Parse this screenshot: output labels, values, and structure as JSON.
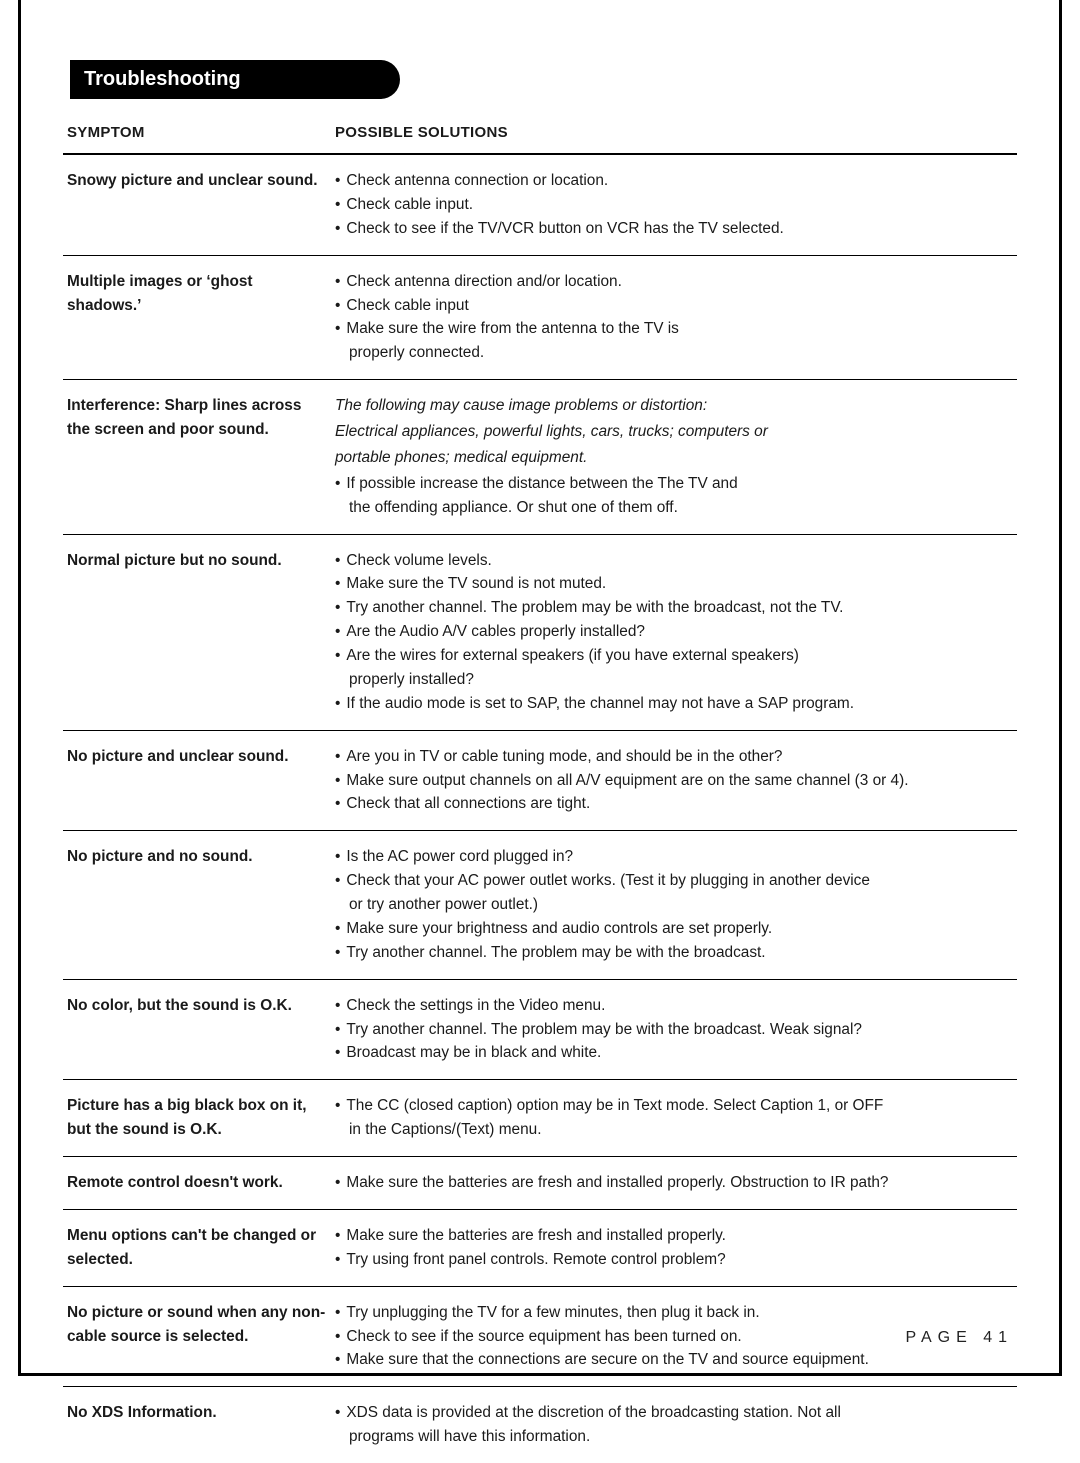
{
  "section_title": "Troubleshooting",
  "headers": {
    "symptom": "SYMPTOM",
    "solutions": "POSSIBLE SOLUTIONS"
  },
  "page_label": "PAGE 41",
  "colors": {
    "text": "#1a1a1a",
    "border": "#000000",
    "bg": "#ffffff",
    "tab_bg": "#000000",
    "tab_fg": "#ffffff"
  },
  "fontsizes": {
    "tab": 20,
    "header": 15,
    "body": 15.4,
    "page_num": 16
  },
  "rows": [
    {
      "symptom": "Snowy picture and unclear sound.",
      "lines": [
        {
          "t": "bullet",
          "text": "Check antenna connection or location."
        },
        {
          "t": "bullet",
          "text": "Check cable input."
        },
        {
          "t": "bullet",
          "text": "Check to see if the TV/VCR button on VCR has the TV selected."
        }
      ]
    },
    {
      "symptom": "Multiple images or ‘ghost shadows.’",
      "lines": [
        {
          "t": "bullet",
          "text": "Check antenna direction and/or location."
        },
        {
          "t": "bullet",
          "text": "Check cable input"
        },
        {
          "t": "bullet",
          "text": "Make sure the wire from the antenna to the TV is"
        },
        {
          "t": "cont",
          "text": "properly connected."
        }
      ]
    },
    {
      "symptom": "Interference: Sharp lines across the screen and poor sound.",
      "lines": [
        {
          "t": "italic",
          "text": "The following may cause image problems or distortion:"
        },
        {
          "t": "italic",
          "text": "Electrical appliances, powerful lights, cars, trucks; computers or"
        },
        {
          "t": "italic",
          "text": "portable phones; medical equipment."
        },
        {
          "t": "bullet",
          "text": "If possible increase the distance between the The TV and"
        },
        {
          "t": "cont",
          "text": "the offending appliance. Or shut one of them off."
        }
      ]
    },
    {
      "symptom": "Normal picture but no sound.",
      "lines": [
        {
          "t": "bullet",
          "text": "Check volume levels."
        },
        {
          "t": "bullet",
          "text": "Make sure the TV sound is not muted."
        },
        {
          "t": "bullet",
          "text": "Try another channel. The problem may be with the broadcast, not the TV."
        },
        {
          "t": "bullet",
          "text": "Are the Audio A/V cables properly installed?"
        },
        {
          "t": "bullet",
          "text": "Are the wires for external speakers (if you have external speakers)"
        },
        {
          "t": "cont",
          "text": "properly installed?"
        },
        {
          "t": "bullet",
          "text": "If the audio mode is set to SAP, the channel may not have a SAP program."
        }
      ]
    },
    {
      "symptom": "No picture and unclear sound.",
      "lines": [
        {
          "t": "bullet",
          "text": "Are you in TV or cable tuning mode, and should be in the other?"
        },
        {
          "t": "bullet",
          "text": "Make sure output channels on all A/V equipment are on the same channel (3 or 4)."
        },
        {
          "t": "bullet",
          "text": "Check that all connections are tight."
        }
      ]
    },
    {
      "symptom": "No picture and no sound.",
      "lines": [
        {
          "t": "bullet",
          "text": "Is the AC power cord plugged in?"
        },
        {
          "t": "bullet",
          "text": "Check that your AC power outlet works. (Test it by plugging in another device"
        },
        {
          "t": "cont",
          "text": "or try another power outlet.)"
        },
        {
          "t": "bullet",
          "text": "Make sure your brightness and audio controls are set properly."
        },
        {
          "t": "bullet",
          "text": "Try another channel. The problem may be with the broadcast."
        }
      ]
    },
    {
      "symptom": "No color, but the sound is O.K.",
      "lines": [
        {
          "t": "bullet",
          "text": "Check the settings in the Video menu."
        },
        {
          "t": "bullet",
          "text": "Try another channel. The problem may be with the broadcast. Weak signal?"
        },
        {
          "t": "bullet",
          "text": "Broadcast may be in black and white."
        }
      ]
    },
    {
      "symptom": "Picture has a big black box on it, but the sound is O.K.",
      "lines": [
        {
          "t": "bullet",
          "text": "The CC (closed caption) option may be in Text mode. Select Caption 1, or OFF"
        },
        {
          "t": "cont",
          "text": "in the Captions/(Text) menu."
        }
      ]
    },
    {
      "symptom": "Remote control doesn't work.",
      "lines": [
        {
          "t": "bullet",
          "text": "Make sure the batteries are fresh and installed properly. Obstruction to IR path?"
        }
      ]
    },
    {
      "symptom": "Menu options can't be changed or selected.",
      "lines": [
        {
          "t": "bullet",
          "text": "Make sure the batteries are fresh and installed properly."
        },
        {
          "t": "bullet",
          "text": "Try using front panel controls. Remote control problem?"
        }
      ]
    },
    {
      "symptom": "No picture or sound when any non-cable source is selected.",
      "lines": [
        {
          "t": "bullet",
          "text": "Try unplugging the TV for a few minutes, then plug it back in."
        },
        {
          "t": "bullet",
          "text": "Check to see if the source equipment has been turned on."
        },
        {
          "t": "bullet",
          "text": "Make sure that the connections are secure on the TV and source equipment."
        }
      ]
    },
    {
      "symptom": "No XDS Information.",
      "lines": [
        {
          "t": "bullet",
          "text": "XDS data is provided at the discretion of the broadcasting station. Not all"
        },
        {
          "t": "cont",
          "text": "programs will have this information."
        }
      ]
    }
  ]
}
